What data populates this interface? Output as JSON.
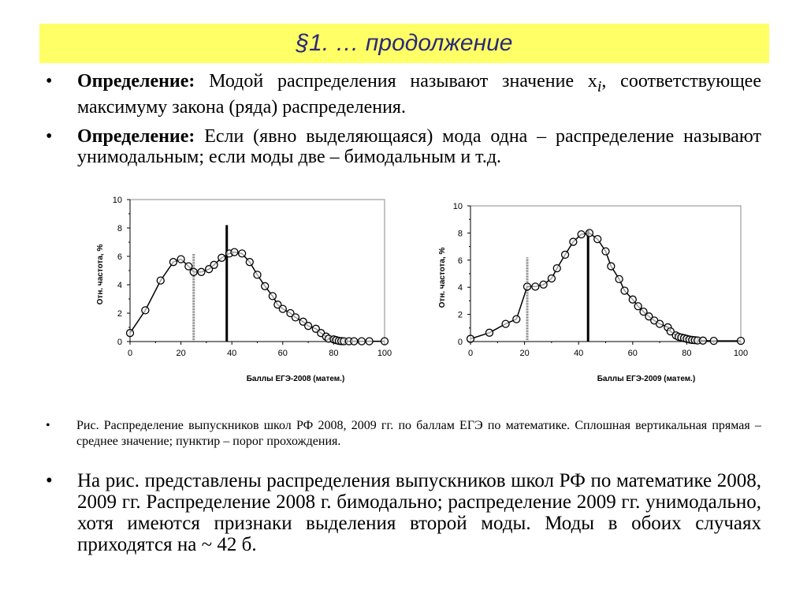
{
  "header": {
    "title": "§1. … продолжение"
  },
  "bullets": [
    {
      "term": "Определение:",
      "text": " Модой распределения называют значение x",
      "sub": "i",
      "tail": ", соответствующее максимуму закона (ряда) распределения."
    },
    {
      "term": "Определение:",
      "text": " Если (явно выделяющаяся) мода одна – распределение называют унимодальным; если моды две – бимодальным и т.д."
    }
  ],
  "caption": "Рис. Распределение выпускников школ РФ 2008, 2009 гг. по баллам ЕГЭ по математике. Сплошная вертикальная прямая – среднее значение; пунктир – порог прохождения.",
  "conclusion": "На рис. представлены распределения выпускников школ РФ по математике 2008, 2009 гг. Распределение 2008 г. бимодально; распределение 2009 гг. унимодально, хотя имеются признаки выделения второй моды. Моды в обоих случаях приходятся на ~ 42 б.",
  "bullet_glyph": "•",
  "chart_data": [
    {
      "type": "line",
      "title": "",
      "xlabel": "Баллы ЕГЭ-2008 (матем.)",
      "ylabel": "Отн. частота, %",
      "xlim": [
        0,
        100
      ],
      "ylim": [
        0,
        10
      ],
      "xticks": [
        0,
        20,
        40,
        60,
        80,
        100
      ],
      "yticks": [
        0,
        2,
        4,
        6,
        8,
        10
      ],
      "series": [
        {
          "name": "2008",
          "x": [
            0,
            6,
            12,
            17,
            20,
            23,
            25,
            28,
            31,
            33,
            36,
            39,
            41,
            44,
            47,
            50,
            53,
            56,
            58,
            60,
            63,
            65,
            68,
            70,
            73,
            75,
            77,
            78,
            80,
            81,
            82,
            83,
            84,
            86,
            88,
            91,
            94,
            100
          ],
          "values": [
            0.6,
            2.2,
            4.3,
            5.6,
            5.8,
            5.3,
            4.9,
            4.9,
            5.1,
            5.4,
            5.9,
            6.2,
            6.3,
            6.2,
            5.6,
            4.7,
            3.9,
            3.2,
            2.6,
            2.3,
            2.0,
            1.7,
            1.4,
            1.1,
            0.9,
            0.6,
            0.35,
            0.2,
            0.15,
            0.1,
            0.05,
            0.03,
            0.02,
            0.02,
            0.02,
            0.02,
            0.02,
            0.02
          ]
        }
      ],
      "annotations": [
        {
          "type": "mean-line",
          "style": "solid",
          "x": 38,
          "height": 8.2
        },
        {
          "type": "threshold-line",
          "style": "dotted",
          "x": 25,
          "height": 6.2
        }
      ],
      "grid": false
    },
    {
      "type": "line",
      "title": "",
      "xlabel": "Баллы ЕГЭ-2009 (матем.)",
      "ylabel": "Отн. частота, %",
      "xlim": [
        0,
        100
      ],
      "ylim": [
        0,
        10
      ],
      "xticks": [
        0,
        20,
        40,
        60,
        80,
        100
      ],
      "yticks": [
        0,
        2,
        4,
        6,
        8,
        10
      ],
      "series": [
        {
          "name": "2009",
          "x": [
            0,
            7,
            13,
            17,
            21,
            24,
            27,
            30,
            32,
            35,
            38,
            41,
            44,
            47,
            50,
            52,
            55,
            57,
            60,
            62,
            64,
            66,
            68,
            70,
            73,
            74,
            76,
            77,
            78,
            79,
            80,
            81,
            82,
            83,
            84,
            86,
            90,
            100
          ],
          "values": [
            0.2,
            0.65,
            1.3,
            1.65,
            4.05,
            4.05,
            4.2,
            4.65,
            5.4,
            6.4,
            7.35,
            7.9,
            8.0,
            7.55,
            6.65,
            5.55,
            4.6,
            3.75,
            3.1,
            2.6,
            2.2,
            1.85,
            1.55,
            1.3,
            1.05,
            0.75,
            0.45,
            0.35,
            0.3,
            0.25,
            0.2,
            0.15,
            0.12,
            0.1,
            0.08,
            0.07,
            0.05,
            0.05
          ]
        }
      ],
      "annotations": [
        {
          "type": "mean-line",
          "style": "solid",
          "x": 43.5,
          "height": 8.2
        },
        {
          "type": "threshold-line",
          "style": "dotted",
          "x": 21,
          "height": 6.2
        }
      ],
      "grid": false
    }
  ]
}
